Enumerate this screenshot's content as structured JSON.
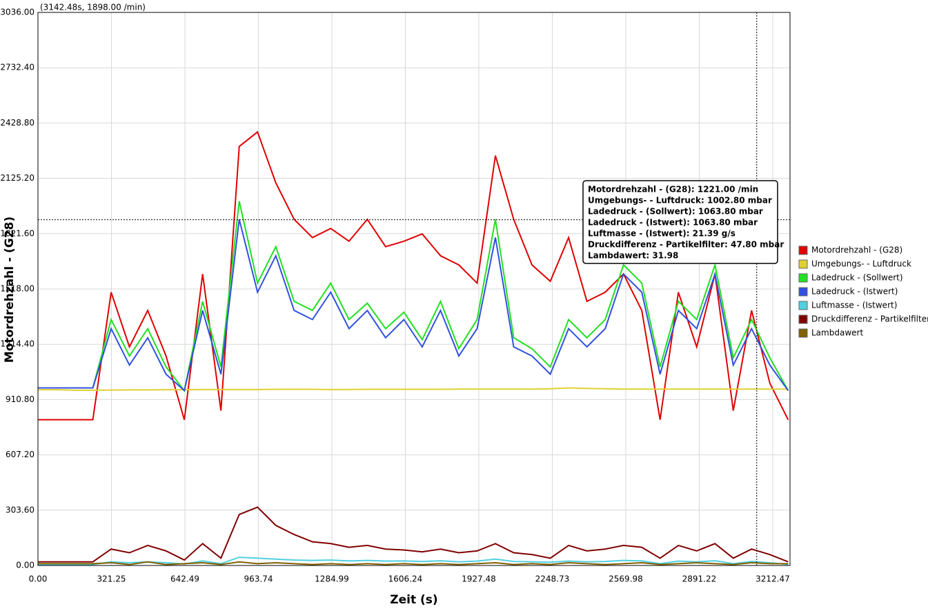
{
  "chart_data": {
    "type": "line",
    "header": "(3142.48s, 1898.00 /min)",
    "ylabel": "Motordrehzahl - (G28)",
    "xlabel": "Zeit (s)",
    "cursor_x": 3142.48,
    "cursor_y": 1898,
    "tooltip": [
      "Motordrehzahl - (G28): 1221.00  /min",
      "Umgebungs- - Luftdruck: 1002.80  mbar",
      "Ladedruck - (Sollwert): 1063.80  mbar",
      "Ladedruck - (Istwert): 1063.80  mbar",
      "Luftmasse - (Istwert): 21.39  g/s",
      "Druckdifferenz - Partikelfilter: 47.80  mbar",
      "Lambdawert: 31.98"
    ],
    "xlim": [
      0,
      3288
    ],
    "ylim": [
      0,
      3036
    ],
    "grid": true,
    "legend": "right",
    "xticks": [
      {
        "value": 0,
        "label": "0.00"
      },
      {
        "value": 321.25,
        "label": "321.25"
      },
      {
        "value": 642.49,
        "label": "642.49"
      },
      {
        "value": 963.74,
        "label": "963.74"
      },
      {
        "value": 1284.99,
        "label": "1284.99"
      },
      {
        "value": 1606.24,
        "label": "1606.24"
      },
      {
        "value": 1927.48,
        "label": "1927.48"
      },
      {
        "value": 2248.73,
        "label": "2248.73"
      },
      {
        "value": 2569.98,
        "label": "2569.98"
      },
      {
        "value": 2891.22,
        "label": "2891.22"
      },
      {
        "value": 3212.47,
        "label": "3212.47"
      }
    ],
    "yticks": [
      {
        "value": 0,
        "label": "0.00"
      },
      {
        "value": 303.6,
        "label": "303.60"
      },
      {
        "value": 607.2,
        "label": "607.20"
      },
      {
        "value": 910.8,
        "label": "910.80"
      },
      {
        "value": 1214.4,
        "label": "1214.40"
      },
      {
        "value": 1518,
        "label": "1518.00"
      },
      {
        "value": 1821.6,
        "label": "1821.60"
      },
      {
        "value": 2125.2,
        "label": "2125.20"
      },
      {
        "value": 2428.8,
        "label": "2428.80"
      },
      {
        "value": 2732.4,
        "label": "2732.40"
      },
      {
        "value": 3036,
        "label": "3036.00"
      }
    ],
    "x": [
      0,
      80,
      160,
      240,
      320,
      400,
      480,
      560,
      640,
      720,
      800,
      880,
      960,
      1040,
      1120,
      1200,
      1280,
      1360,
      1440,
      1520,
      1600,
      1680,
      1760,
      1840,
      1920,
      2000,
      2080,
      2160,
      2240,
      2320,
      2400,
      2480,
      2560,
      2640,
      2720,
      2800,
      2880,
      2960,
      3040,
      3120,
      3200,
      3280
    ],
    "series": [
      {
        "name": "Motordrehzahl - (G28)",
        "color": "#e00000",
        "values": [
          800,
          800,
          800,
          800,
          1500,
          1200,
          1400,
          1150,
          800,
          1600,
          850,
          2300,
          2380,
          2100,
          1900,
          1800,
          1850,
          1780,
          1900,
          1750,
          1780,
          1820,
          1700,
          1650,
          1550,
          2250,
          1900,
          1650,
          1560,
          1800,
          1450,
          1500,
          1600,
          1400,
          800,
          1500,
          1200,
          1600,
          850,
          1400,
          1000,
          800
        ]
      },
      {
        "name": "Umgebungs- - Luftdruck",
        "color": "#e0d030",
        "values": [
          965,
          965,
          962,
          962,
          963,
          964,
          964,
          965,
          965,
          966,
          966,
          966,
          966,
          967,
          967,
          967,
          966,
          966,
          967,
          967,
          967,
          967,
          967,
          968,
          968,
          968,
          968,
          968,
          970,
          975,
          972,
          970,
          968,
          968,
          968,
          968,
          968,
          968,
          968,
          968,
          968,
          968
        ]
      },
      {
        "name": "Ladedruck - (Sollwert)",
        "color": "#20e020",
        "values": [
          975,
          975,
          975,
          975,
          1350,
          1150,
          1300,
          1090,
          960,
          1450,
          1090,
          2000,
          1550,
          1750,
          1450,
          1400,
          1550,
          1350,
          1440,
          1300,
          1390,
          1240,
          1450,
          1190,
          1350,
          1900,
          1250,
          1190,
          1090,
          1350,
          1250,
          1350,
          1650,
          1550,
          1090,
          1450,
          1350,
          1650,
          1140,
          1350,
          1140,
          960
        ]
      },
      {
        "name": "Ladedruck - (Istwert)",
        "color": "#3050e0",
        "values": [
          975,
          975,
          975,
          975,
          1300,
          1100,
          1250,
          1050,
          960,
          1400,
          1050,
          1900,
          1500,
          1700,
          1400,
          1350,
          1500,
          1300,
          1400,
          1250,
          1350,
          1200,
          1400,
          1150,
          1300,
          1800,
          1200,
          1150,
          1050,
          1300,
          1200,
          1300,
          1600,
          1500,
          1050,
          1400,
          1300,
          1600,
          1100,
          1300,
          1100,
          960
        ]
      },
      {
        "name": "Luftmasse - (Istwert)",
        "color": "#50d0e0",
        "values": [
          5,
          5,
          5,
          5,
          20,
          15,
          20,
          15,
          8,
          25,
          10,
          45,
          40,
          35,
          30,
          28,
          30,
          25,
          28,
          24,
          25,
          22,
          26,
          20,
          24,
          35,
          22,
          20,
          18,
          24,
          20,
          22,
          28,
          25,
          10,
          24,
          20,
          26,
          10,
          22,
          15,
          5
        ]
      },
      {
        "name": "Druckdifferenz - Partikelfilter",
        "color": "#800000",
        "values": [
          20,
          20,
          20,
          20,
          90,
          70,
          110,
          80,
          30,
          120,
          40,
          280,
          320,
          220,
          170,
          130,
          120,
          100,
          110,
          90,
          85,
          75,
          90,
          70,
          80,
          120,
          70,
          60,
          40,
          110,
          80,
          90,
          110,
          100,
          40,
          110,
          80,
          120,
          40,
          90,
          60,
          20
        ]
      },
      {
        "name": "Lambdawert",
        "color": "#806000",
        "values": [
          10,
          10,
          10,
          10,
          15,
          5,
          20,
          5,
          10,
          15,
          5,
          20,
          10,
          15,
          10,
          5,
          10,
          5,
          10,
          5,
          10,
          5,
          10,
          5,
          10,
          15,
          5,
          10,
          5,
          15,
          10,
          5,
          10,
          15,
          5,
          10,
          15,
          10,
          5,
          15,
          10,
          10
        ]
      }
    ]
  }
}
